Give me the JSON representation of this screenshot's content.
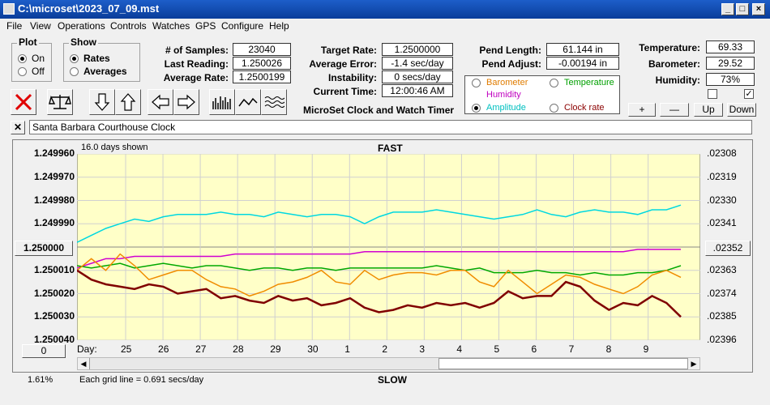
{
  "window": {
    "title": "C:\\microset\\2023_07_09.mst"
  },
  "menu": [
    "File",
    "View",
    "Operations",
    "Controls",
    "Watches",
    "GPS",
    "Configure",
    "Help"
  ],
  "plot_group": {
    "title": "Plot",
    "on": "On",
    "off": "Off"
  },
  "show_group": {
    "title": "Show",
    "rates": "Rates",
    "averages": "Averages"
  },
  "stats": {
    "samples_label": "# of Samples:",
    "samples": "23040",
    "last_reading_label": "Last Reading:",
    "last_reading": "1.250026",
    "average_rate_label": "Average Rate:",
    "average_rate": "1.2500199",
    "target_rate_label": "Target Rate:",
    "target_rate": "1.2500000",
    "average_error_label": "Average Error:",
    "average_error": "-1.4 sec/day",
    "instability_label": "Instability:",
    "instability": "0 secs/day",
    "current_time_label": "Current Time:",
    "current_time": "12:00:46 AM",
    "pend_length_label": "Pend Length:",
    "pend_length": "61.144 in",
    "pend_adjust_label": "Pend Adjust:",
    "pend_adjust": "-0.00194 in",
    "temperature_label": "Temperature:",
    "temperature": "69.33",
    "barometer_label": "Barometer:",
    "barometer": "29.52",
    "humidity_label": "Humidity:",
    "humidity": "73%"
  },
  "app_caption": "MicroSet Clock and Watch Timer",
  "sensors": {
    "barometer": "Barometer",
    "temperature": "Temperature",
    "humidity": "Humidity",
    "amplitude": "Amplitude",
    "clock_rate": "Clock rate",
    "colors": {
      "barometer": "#e07c00",
      "temperature": "#00a000",
      "humidity": "#c000c0",
      "amplitude": "#00c0c0",
      "clock_rate": "#8b0000"
    }
  },
  "adjust_buttons": {
    "plus": "+",
    "minus": "—",
    "up": "Up",
    "down": "Down"
  },
  "clock_name": "Santa Barbara Courthouse Clock",
  "chart_header": {
    "days_shown": "16.0 days shown",
    "fast": "FAST",
    "slow": "SLOW",
    "grid_note": "Each grid line = 0.691 secs/day",
    "percent": "1.61%",
    "day_label": "Day:",
    "zero_button": "0"
  },
  "chart_data": {
    "type": "line",
    "x_label": "Day",
    "x_ticks": [
      "25",
      "26",
      "27",
      "28",
      "29",
      "30",
      "1",
      "2",
      "3",
      "4",
      "5",
      "6",
      "7",
      "8",
      "9"
    ],
    "y_left_ticks": [
      "1.249960",
      "1.249970",
      "1.249980",
      "1.249990",
      "1.250000",
      "1.250010",
      "1.250020",
      "1.250030",
      "1.250040"
    ],
    "y_left_range": [
      1.24996,
      1.25004
    ],
    "y_right_ticks": [
      ".02308",
      ".02319",
      ".02330",
      ".02341",
      ".02352",
      ".02363",
      ".02374",
      ".02385",
      ".02396"
    ],
    "grid": true,
    "series": [
      {
        "name": "Amplitude",
        "color": "#00d8e0",
        "values": [
          1.249998,
          1.249995,
          1.249992,
          1.24999,
          1.249988,
          1.249989,
          1.249987,
          1.249986,
          1.249986,
          1.249986,
          1.249985,
          1.249986,
          1.249986,
          1.249987,
          1.249985,
          1.249986,
          1.249987,
          1.249986,
          1.249986,
          1.249987,
          1.24999,
          1.249987,
          1.249985,
          1.249985,
          1.249985,
          1.249984,
          1.249985,
          1.249986,
          1.249987,
          1.249988,
          1.249987,
          1.249986,
          1.249984,
          1.249986,
          1.249987,
          1.249985,
          1.249984,
          1.249985,
          1.249985,
          1.249986,
          1.249984,
          1.249984,
          1.249982
        ]
      },
      {
        "name": "Humidity",
        "color": "#d000d0",
        "values": [
          1.250009,
          1.250007,
          1.250005,
          1.250005,
          1.250004,
          1.250004,
          1.250004,
          1.250004,
          1.250004,
          1.250004,
          1.250004,
          1.250003,
          1.250003,
          1.250003,
          1.250003,
          1.250003,
          1.250003,
          1.250003,
          1.250003,
          1.250003,
          1.250002,
          1.250002,
          1.250002,
          1.250002,
          1.250002,
          1.250002,
          1.250002,
          1.250002,
          1.250002,
          1.250002,
          1.250002,
          1.250002,
          1.250002,
          1.250002,
          1.250002,
          1.250002,
          1.250002,
          1.250002,
          1.250002,
          1.250001,
          1.250001,
          1.250001,
          1.250001
        ]
      },
      {
        "name": "Temperature",
        "color": "#00a800",
        "values": [
          1.250008,
          1.250009,
          1.250008,
          1.250007,
          1.250009,
          1.250008,
          1.250007,
          1.250008,
          1.250009,
          1.250008,
          1.250008,
          1.250009,
          1.25001,
          1.250009,
          1.250009,
          1.25001,
          1.250009,
          1.250009,
          1.25001,
          1.250009,
          1.250009,
          1.250009,
          1.250009,
          1.250009,
          1.250009,
          1.250008,
          1.250009,
          1.25001,
          1.250009,
          1.250011,
          1.250011,
          1.250011,
          1.25001,
          1.250011,
          1.250011,
          1.250012,
          1.250011,
          1.250012,
          1.250012,
          1.250011,
          1.250011,
          1.25001,
          1.250008
        ]
      },
      {
        "name": "Barometer",
        "color": "#f08c00",
        "values": [
          1.25001,
          1.250005,
          1.25001,
          1.250003,
          1.250008,
          1.250014,
          1.250012,
          1.25001,
          1.25001,
          1.250014,
          1.250017,
          1.250018,
          1.250021,
          1.250019,
          1.250016,
          1.250015,
          1.250013,
          1.25001,
          1.250015,
          1.250016,
          1.25001,
          1.250014,
          1.250012,
          1.250011,
          1.250011,
          1.250012,
          1.25001,
          1.25001,
          1.250015,
          1.250017,
          1.25001,
          1.250015,
          1.25002,
          1.250016,
          1.250012,
          1.250013,
          1.250016,
          1.250018,
          1.25002,
          1.250017,
          1.250012,
          1.25001,
          1.250013
        ]
      },
      {
        "name": "Clock rate",
        "color": "#800000",
        "values": [
          1.25001,
          1.250014,
          1.250016,
          1.250017,
          1.250018,
          1.250016,
          1.250017,
          1.25002,
          1.250019,
          1.250018,
          1.250022,
          1.250021,
          1.250023,
          1.250024,
          1.250021,
          1.250023,
          1.250022,
          1.250025,
          1.250024,
          1.250022,
          1.250026,
          1.250028,
          1.250027,
          1.250025,
          1.250026,
          1.250024,
          1.250025,
          1.250024,
          1.250026,
          1.250024,
          1.250019,
          1.250022,
          1.250021,
          1.250021,
          1.250015,
          1.250017,
          1.250023,
          1.250027,
          1.250024,
          1.250025,
          1.250021,
          1.250024,
          1.25003
        ]
      }
    ]
  }
}
